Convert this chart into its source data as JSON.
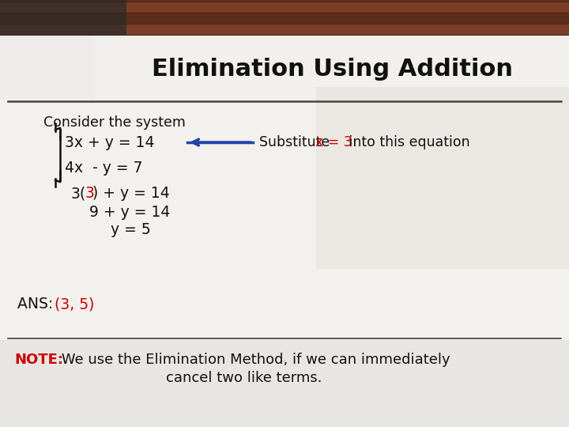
{
  "title": "Elimination Using Addition",
  "title_fontsize": 22,
  "title_fontweight": "bold",
  "title_color": "#111111",
  "consider_text": "Consider the system",
  "eq1": "3x + y = 14",
  "eq2": "4x  - y = 7",
  "substitute_prefix": "Substitute ",
  "substitute_colored": "x = 3",
  "substitute_suffix": " into this equation",
  "step2": "9 + y = 14",
  "step3": "y = 5",
  "ans_prefix": "ANS: ",
  "ans_colored": "(3, 5)",
  "ans_color": "#cc0000",
  "note_prefix": "NOTE:",
  "note_prefix_color": "#cc0000",
  "note_text": " We use the Elimination Method, if we can immediately",
  "note_text2": "cancel two like terms.",
  "arrow_color": "#2244aa",
  "brace_color": "#111111",
  "separator_color": "#444444",
  "slide_bg": "#f0eeec",
  "bottom_bg": "#e0dedd",
  "top_photo_bg": "#5a3030",
  "title_area_bg": "#eeecea"
}
